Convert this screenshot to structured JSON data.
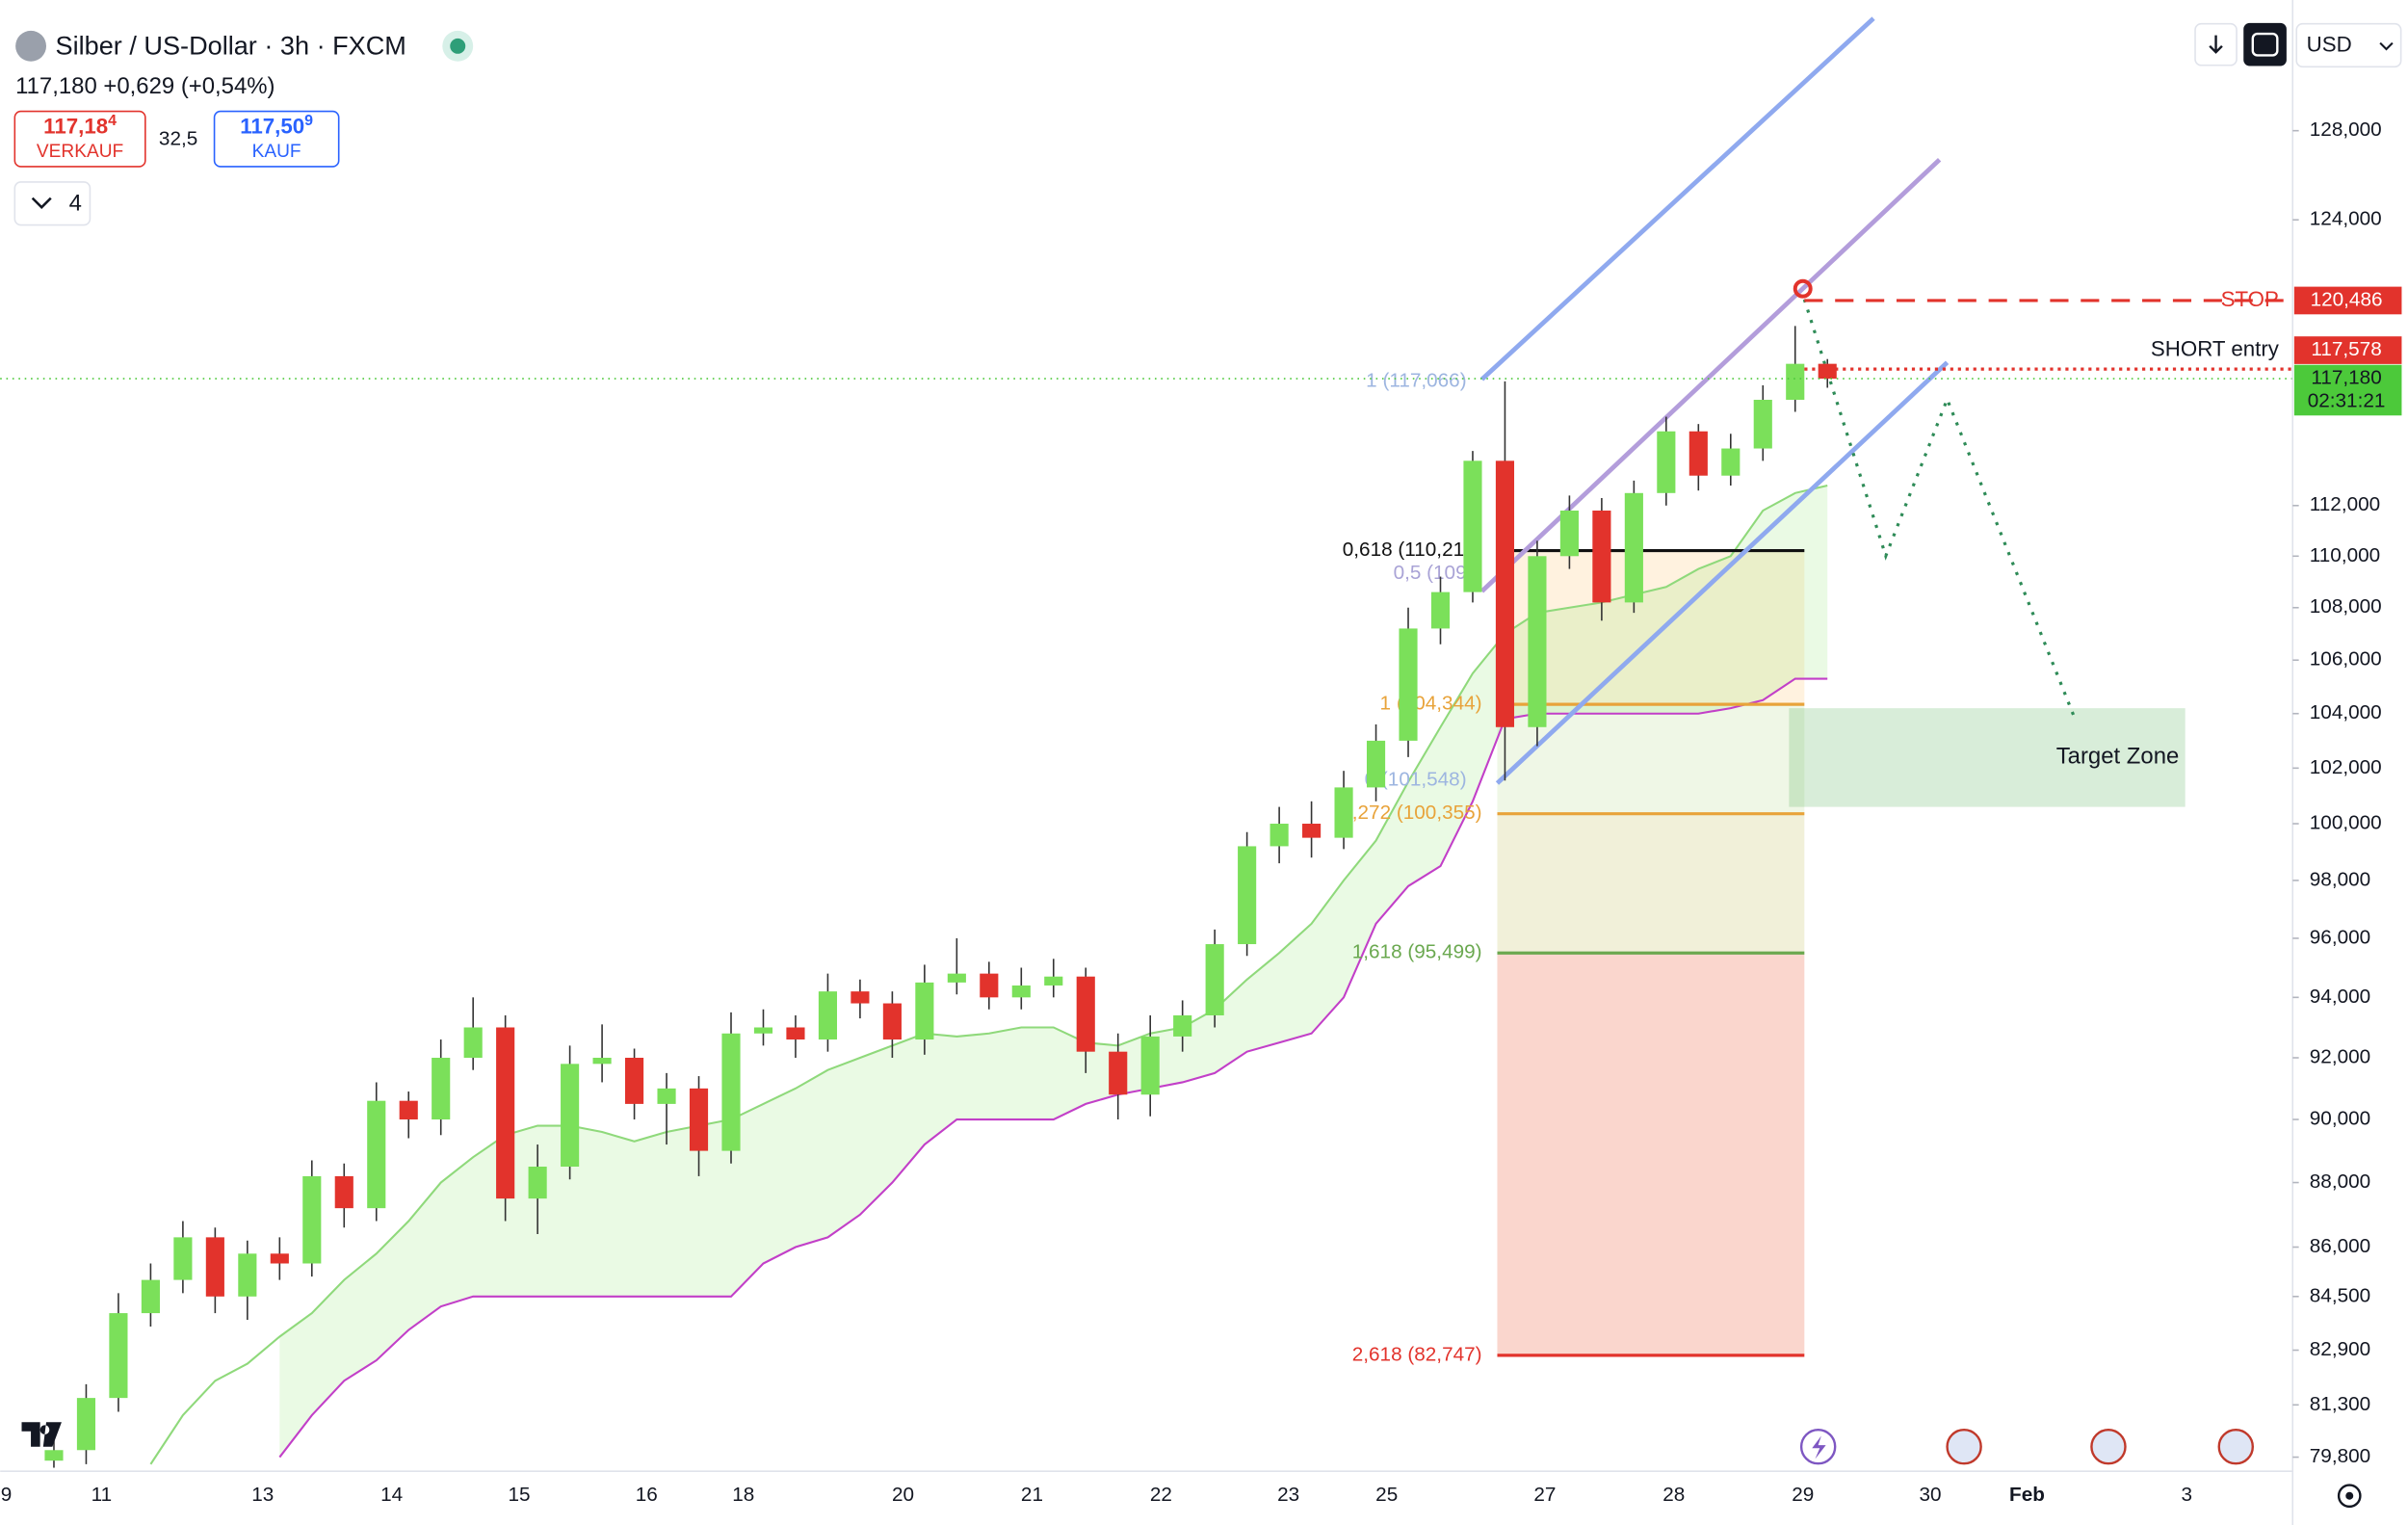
{
  "header": {
    "title": "Silber / US-Dollar · 3h · FXCM",
    "price_line": "117,180 +0,629 (+0,54%)",
    "sell": {
      "price": "117,18",
      "pip": "4",
      "label": "VERKAUF"
    },
    "spread": "32,5",
    "buy": {
      "price": "117,50",
      "pip": "9",
      "label": "KAUF"
    },
    "indicator_count": "4",
    "currency": "USD"
  },
  "chart_data": {
    "type": "candlestick",
    "log_scale": true,
    "up_color": "#7be05a",
    "down_color": "#e2332c",
    "ylim": [
      79.4,
      134.1
    ],
    "yticks": [
      {
        "value": 128,
        "label": "128,000"
      },
      {
        "value": 124,
        "label": "124,000"
      },
      {
        "value": 112,
        "label": "112,000"
      },
      {
        "value": 110,
        "label": "110,000"
      },
      {
        "value": 108,
        "label": "108,000"
      },
      {
        "value": 106,
        "label": "106,000"
      },
      {
        "value": 104,
        "label": "104,000"
      },
      {
        "value": 102,
        "label": "102,000"
      },
      {
        "value": 100,
        "label": "100,000"
      },
      {
        "value": 98,
        "label": "98,000"
      },
      {
        "value": 96,
        "label": "96,000"
      },
      {
        "value": 94,
        "label": "94,000"
      },
      {
        "value": 92,
        "label": "92,000"
      },
      {
        "value": 90,
        "label": "90,000"
      },
      {
        "value": 88,
        "label": "88,000"
      },
      {
        "value": 86,
        "label": "86,000"
      },
      {
        "value": 84.5,
        "label": "84,500"
      },
      {
        "value": 82.9,
        "label": "82,900"
      },
      {
        "value": 81.3,
        "label": "81,300"
      },
      {
        "value": 79.8,
        "label": "79,800"
      }
    ],
    "x_labels": [
      "9",
      "11",
      "13",
      "14",
      "15",
      "16",
      "18",
      "20",
      "21",
      "22",
      "23",
      "25",
      "27",
      "28",
      "29",
      "30",
      "Feb",
      "3"
    ],
    "open": [
      79.7,
      80.0,
      81.5,
      84.0,
      85.0,
      86.3,
      84.5,
      85.8,
      85.5,
      88.2,
      87.2,
      90.6,
      90.0,
      92.0,
      93.0,
      87.5,
      88.5,
      91.8,
      92.0,
      90.5,
      91.0,
      89.0,
      92.8,
      93.0,
      92.6,
      94.2,
      93.8,
      92.6,
      94.5,
      94.8,
      94.0,
      94.4,
      94.7,
      92.2,
      90.8,
      92.7,
      93.4,
      95.8,
      99.2,
      100.0,
      99.5,
      101.3,
      103.0,
      107.2,
      108.6,
      113.8,
      103.5,
      110.0,
      111.8,
      108.2,
      112.5,
      115.0,
      113.2,
      114.3,
      116.3,
      117.8
    ],
    "high": [
      80.3,
      81.9,
      84.6,
      85.5,
      86.8,
      86.6,
      86.2,
      86.3,
      88.7,
      88.6,
      91.2,
      90.9,
      92.6,
      94.0,
      93.4,
      89.2,
      92.4,
      93.1,
      92.3,
      91.5,
      91.4,
      93.5,
      93.6,
      93.4,
      94.8,
      94.6,
      94.2,
      95.1,
      96.0,
      95.2,
      95.0,
      95.3,
      95.0,
      92.8,
      93.4,
      93.9,
      96.3,
      99.7,
      100.6,
      100.8,
      101.9,
      103.6,
      108.0,
      109.2,
      114.2,
      117.066,
      110.6,
      112.4,
      112.3,
      113.0,
      115.6,
      115.3,
      114.9,
      116.9,
      119.4,
      118.0
    ],
    "low": [
      79.5,
      79.6,
      81.1,
      83.6,
      84.6,
      84.0,
      83.8,
      85.0,
      85.1,
      86.6,
      86.8,
      89.4,
      89.5,
      91.6,
      86.8,
      86.4,
      88.1,
      91.2,
      90.0,
      89.2,
      88.2,
      88.6,
      92.4,
      92.0,
      92.2,
      93.3,
      92.0,
      92.1,
      94.1,
      93.6,
      93.6,
      94.0,
      91.5,
      90.0,
      90.1,
      92.2,
      93.0,
      95.4,
      98.6,
      98.8,
      99.1,
      100.8,
      102.4,
      106.6,
      108.2,
      101.548,
      102.8,
      109.5,
      107.5,
      107.8,
      112.0,
      112.6,
      112.8,
      113.8,
      115.8,
      116.8
    ],
    "close": [
      80.0,
      81.5,
      84.0,
      85.0,
      86.3,
      84.5,
      85.8,
      85.5,
      88.2,
      87.2,
      90.6,
      90.0,
      92.0,
      93.0,
      87.5,
      88.5,
      91.8,
      92.0,
      90.5,
      91.0,
      89.0,
      92.8,
      93.0,
      92.6,
      94.2,
      93.8,
      92.6,
      94.5,
      94.8,
      94.0,
      94.4,
      94.7,
      92.2,
      90.8,
      92.7,
      93.4,
      95.8,
      99.2,
      100.0,
      99.5,
      101.3,
      103.0,
      107.2,
      108.6,
      113.8,
      103.5,
      110.0,
      111.8,
      108.2,
      112.5,
      115.0,
      113.2,
      114.3,
      116.3,
      117.8,
      117.18
    ],
    "cloud": {
      "upper_color": "#8fd97b",
      "lower_color": "#c23fc8",
      "fill": "rgba(124,224,90,0.16)",
      "upper": [
        null,
        null,
        null,
        79.6,
        81.0,
        82.0,
        82.5,
        83.3,
        84.0,
        85.0,
        85.8,
        86.8,
        88.0,
        88.8,
        89.5,
        89.8,
        89.8,
        89.6,
        89.3,
        89.6,
        89.8,
        90.0,
        90.5,
        91.0,
        91.6,
        92.0,
        92.4,
        92.8,
        92.7,
        92.8,
        93.0,
        93.0,
        92.5,
        92.4,
        92.8,
        93.0,
        93.6,
        94.6,
        95.5,
        96.5,
        98.0,
        99.4,
        101.5,
        103.5,
        105.5,
        107.0,
        107.8,
        108.0,
        108.2,
        108.5,
        108.8,
        109.5,
        110.0,
        111.8,
        112.5,
        112.8
      ],
      "lower": [
        null,
        null,
        null,
        null,
        null,
        null,
        null,
        79.8,
        81.0,
        82.0,
        82.6,
        83.5,
        84.2,
        84.5,
        84.5,
        84.5,
        84.5,
        84.5,
        84.5,
        84.5,
        84.5,
        84.5,
        85.5,
        86.0,
        86.3,
        87.0,
        88.0,
        89.2,
        90.0,
        90.0,
        90.0,
        90.0,
        90.5,
        90.8,
        91.0,
        91.2,
        91.5,
        92.2,
        92.5,
        92.8,
        94.0,
        96.5,
        97.8,
        98.5,
        100.8,
        103.8,
        104.0,
        104.0,
        104.0,
        104.0,
        104.0,
        104.0,
        104.2,
        104.5,
        105.3,
        105.3
      ]
    },
    "fib_extension": [
      {
        "label": "0,618 (110,217)",
        "value": 110.217,
        "color": "#111111",
        "zone_color": "rgba(255,183,77,0.18)"
      },
      {
        "label": "1 (104,344)",
        "value": 104.344,
        "color": "#e8a33a",
        "zone_color": "rgba(156,204,101,0.16)"
      },
      {
        "label": "1,272 (100,355)",
        "value": 100.355,
        "color": "#e8a33a",
        "zone_color": "rgba(190,185,80,0.22)"
      },
      {
        "label": "1,618 (95,499)",
        "value": 95.499,
        "color": "#6aa84f",
        "zone_color": "rgba(240,120,90,0.3)"
      },
      {
        "label": "2,618 (82,747)",
        "value": 82.747,
        "color": "#e2332c"
      }
    ],
    "fib_channel": [
      {
        "label": "1 (117,066)",
        "value": 117.066,
        "color": "#9db5e0"
      },
      {
        "label": "0,5 (109",
        "value": 109.307,
        "color": "#a9a3d6"
      },
      {
        "label": "0 (101,548)",
        "value": 101.548,
        "color": "#9db5e0"
      }
    ],
    "price_labels": [
      {
        "value": 120.486,
        "label": "120,486",
        "color": "#e2332c",
        "annotation": "STOP"
      },
      {
        "value": 117.578,
        "label": "117,578",
        "color": "#e2332c",
        "annotation": "SHORT entry"
      },
      {
        "value": 117.18,
        "label": "117,180",
        "color": "#4cc93a",
        "countdown": "02:31:21"
      }
    ],
    "target_zone": {
      "label": "Target Zone",
      "top": 104.2,
      "bottom": 100.6
    }
  }
}
